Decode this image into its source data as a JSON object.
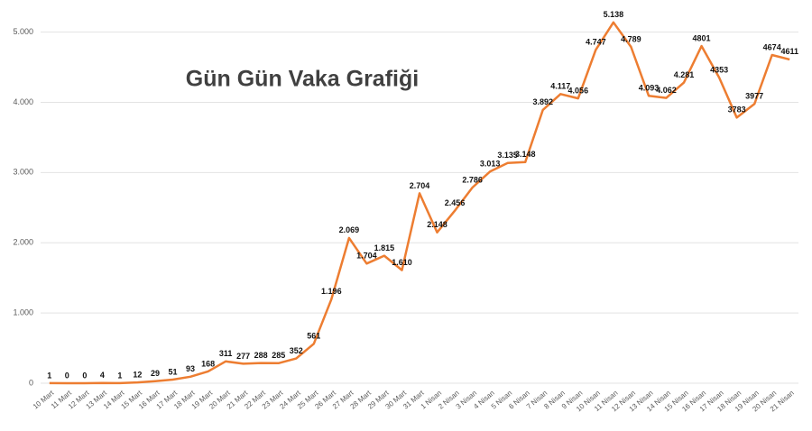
{
  "chart_data": {
    "type": "line",
    "title": "Gün Gün Vaka Grafiği",
    "categories": [
      "10 Mart",
      "11 Mart",
      "12 Mart",
      "13 Mart",
      "14 Mart",
      "15 Mart",
      "16 Mart",
      "17 Mart",
      "18 Mart",
      "19 Mart",
      "20 Mart",
      "21 Mart",
      "22 Mart",
      "23 Mart",
      "24 Mart",
      "25 Mart",
      "26 Mart",
      "27 Mart",
      "28 Mart",
      "29 Mart",
      "30 Mart",
      "31 Mart",
      "1 Nisan",
      "2 Nisan",
      "3 Nisan",
      "4 Nisan",
      "5 Nisan",
      "6 Nisan",
      "7 Nisan",
      "8 Nisan",
      "9 Nisan",
      "10 Nisan",
      "11 Nisan",
      "12 Nisan",
      "13 Nisan",
      "14 Nisan",
      "15 Nisan",
      "16 Nisan",
      "17 Nisan",
      "18 Nisan",
      "19 Nisan",
      "20 Nisan",
      "21 Nisan"
    ],
    "values": [
      1,
      0,
      0,
      4,
      1,
      12,
      29,
      51,
      93,
      168,
      311,
      277,
      288,
      285,
      352,
      561,
      1196,
      2069,
      1704,
      1815,
      1610,
      2704,
      2148,
      2456,
      2786,
      3013,
      3135,
      3148,
      3892,
      4117,
      4056,
      4747,
      5138,
      4789,
      4093,
      4062,
      4281,
      4801,
      4353,
      3783,
      3977,
      4674,
      4611
    ],
    "value_labels": [
      "1",
      "0",
      "0",
      "4",
      "1",
      "12",
      "29",
      "51",
      "93",
      "168",
      "311",
      "277",
      "288",
      "285",
      "352",
      "561",
      "1.196",
      "2.069",
      "1.704",
      "1.815",
      "1.610",
      "2.704",
      "2.148",
      "2.456",
      "2.786",
      "3.013",
      "3.135",
      "3.148",
      "3.892",
      "4.117",
      "4.056",
      "4.747",
      "5.138",
      "4.789",
      "4.093",
      "4.062",
      "4.281",
      "4801",
      "4353",
      "3783",
      "3977",
      "4674",
      "4611"
    ],
    "color": "#ed7d31",
    "ylim": [
      0,
      5200
    ],
    "yticks": [
      0,
      {
        "value": 1000,
        "label": "1.000"
      },
      {
        "value": 2000,
        "label": "2.000"
      },
      {
        "value": 3000,
        "label": "3.000"
      },
      {
        "value": 4000,
        "label": "4.000"
      },
      {
        "value": 5000,
        "label": "5.000"
      }
    ],
    "grid": true
  }
}
